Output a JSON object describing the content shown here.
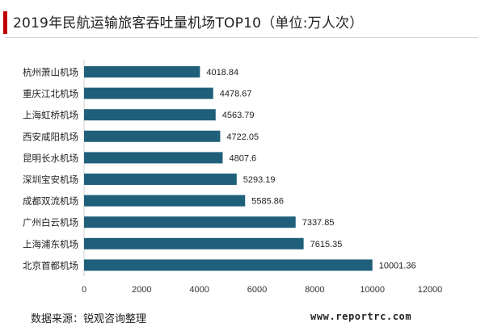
{
  "title": "2019年民航运输旅客吞吐量机场TOP10（单位:万人次）",
  "footer": {
    "source": "数据来源：锐观咨询整理",
    "site": "www.reportrc.com"
  },
  "colors": {
    "bar": "#1f5f7a",
    "accent": "#c00000"
  },
  "chart_data": {
    "type": "bar",
    "orientation": "horizontal",
    "title": "2019年民航运输旅客吞吐量机场TOP10（单位:万人次）",
    "categories": [
      "杭州萧山机场",
      "重庆江北机场",
      "上海虹桥机场",
      "西安咸阳机场",
      "昆明长水机场",
      "深圳宝安机场",
      "成都双流机场",
      "广州白云机场",
      "上海浦东机场",
      "北京首都机场"
    ],
    "values": [
      4018.84,
      4478.67,
      4563.79,
      4722.05,
      4807.6,
      5293.19,
      5585.86,
      7337.85,
      7615.35,
      10001.36
    ],
    "value_labels": [
      "4018.84",
      "4478.67",
      "4563.79",
      "4722.05",
      "4807.6",
      "5293.19",
      "5585.86",
      "7337.85",
      "7615.35",
      "10001.36"
    ],
    "xlim": [
      0,
      12000
    ],
    "xticks": [
      "0",
      "2000",
      "4000",
      "6000",
      "8000",
      "10000",
      "12000"
    ],
    "grid": false,
    "legend": "none"
  }
}
